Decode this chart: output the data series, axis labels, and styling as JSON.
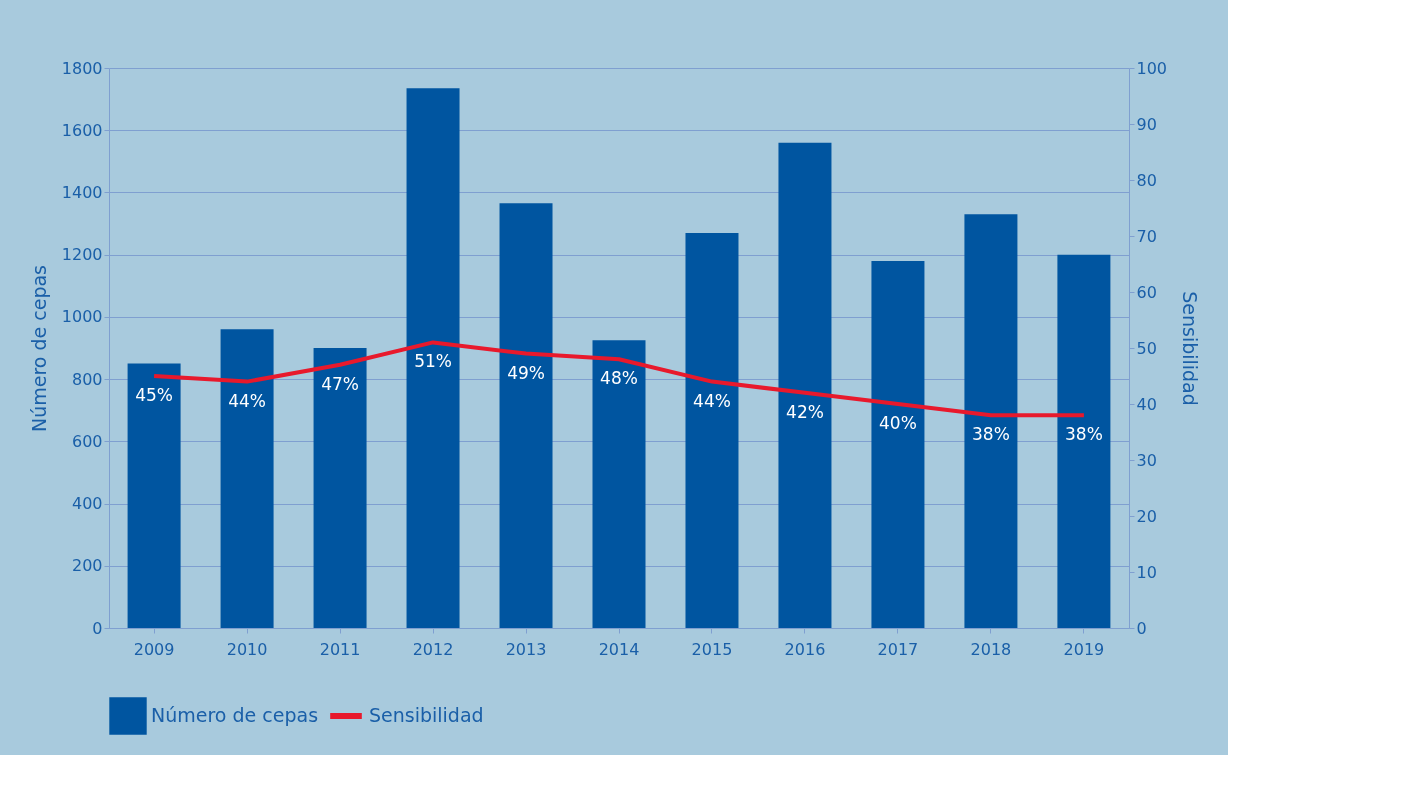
{
  "chart_data": {
    "type": "bar",
    "categories": [
      "2009",
      "2010",
      "2011",
      "2012",
      "2013",
      "2014",
      "2015",
      "2016",
      "2017",
      "2018",
      "2019"
    ],
    "series": [
      {
        "name": "Número de cepas",
        "color": "#0055a0",
        "values": [
          850,
          960,
          900,
          1735,
          1365,
          925,
          1270,
          1560,
          1180,
          1330,
          1200
        ]
      },
      {
        "name": "Sensibilidad",
        "type": "line",
        "axis": "y2",
        "color": "#e8192c",
        "values": [
          45,
          44,
          47,
          51,
          49,
          48,
          44,
          42,
          40,
          38,
          38
        ],
        "value_labels": [
          "45%",
          "44%",
          "47%",
          "51%",
          "49%",
          "48%",
          "44%",
          "42%",
          "40%",
          "38%",
          "38%"
        ]
      }
    ],
    "ylabel": "Número de cepas",
    "y2label": "Sensibilidad",
    "ylim": [
      0,
      1800
    ],
    "yticks": [
      0,
      200,
      400,
      600,
      800,
      1000,
      1200,
      1400,
      1600,
      1800
    ],
    "y2lim": [
      0,
      100
    ],
    "y2ticks": [
      0,
      10,
      20,
      30,
      40,
      50,
      60,
      70,
      80,
      90,
      100
    ],
    "grid": "y",
    "legend": "bottom",
    "marker": "none",
    "line_style": "solid"
  }
}
